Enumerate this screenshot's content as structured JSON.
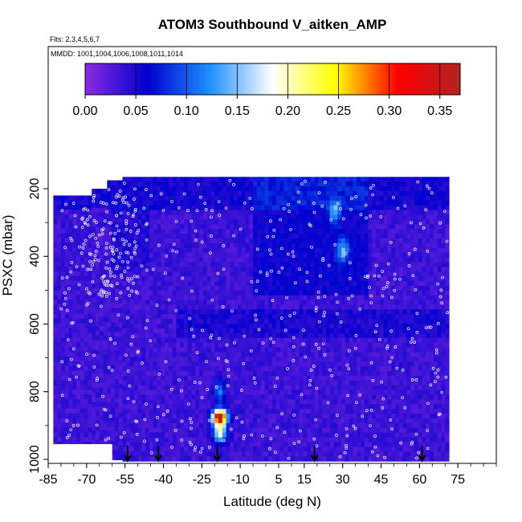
{
  "chart_data": {
    "type": "heatmap",
    "title": "ATOM3 Southbound V_aitken_AMP",
    "flights_label": "Flts: 2,3,4,5,6,7",
    "dates_label": "MMDD: 1001,1004,1006,1008,1011,1014",
    "xlabel": "Latitude (deg N)",
    "ylabel": "PSXC (mbar)",
    "x_ticks": [
      "-85",
      "-70",
      "-55",
      "-40",
      "-25",
      "-10",
      "5",
      "15",
      "30",
      "45",
      "60",
      "75"
    ],
    "x_tick_values": [
      -85,
      -70,
      -55,
      -40,
      -25,
      -10,
      5,
      15,
      30,
      45,
      60,
      75
    ],
    "y_ticks": [
      "200",
      "400",
      "600",
      "800",
      "1000"
    ],
    "y_tick_values": [
      200,
      400,
      600,
      800,
      1000
    ],
    "xlim": [
      -85,
      90
    ],
    "ylim": [
      1000,
      125
    ],
    "colorbar": {
      "ticks": [
        "0.00",
        "0.05",
        "0.10",
        "0.15",
        "0.20",
        "0.25",
        "0.30",
        "0.35"
      ],
      "tick_values": [
        0,
        0.05,
        0.1,
        0.15,
        0.2,
        0.25,
        0.3,
        0.35
      ],
      "range": [
        0,
        0.37
      ],
      "colors": [
        "#8a2be2",
        "#0000cd",
        "#1e90ff",
        "#ffffff",
        "#ffff00",
        "#ff0000",
        "#b22222"
      ]
    },
    "arrow_latitudes": [
      -54,
      -42,
      -19,
      19,
      61
    ],
    "hotspot": {
      "lat": -18,
      "psxc": 875,
      "value": 0.35
    },
    "secondary_maxima": [
      {
        "lat": -18,
        "psxc": 800,
        "value": 0.12
      },
      {
        "lat": 27,
        "psxc": 270,
        "value": 0.12
      },
      {
        "lat": 30,
        "psxc": 385,
        "value": 0.13
      }
    ]
  }
}
